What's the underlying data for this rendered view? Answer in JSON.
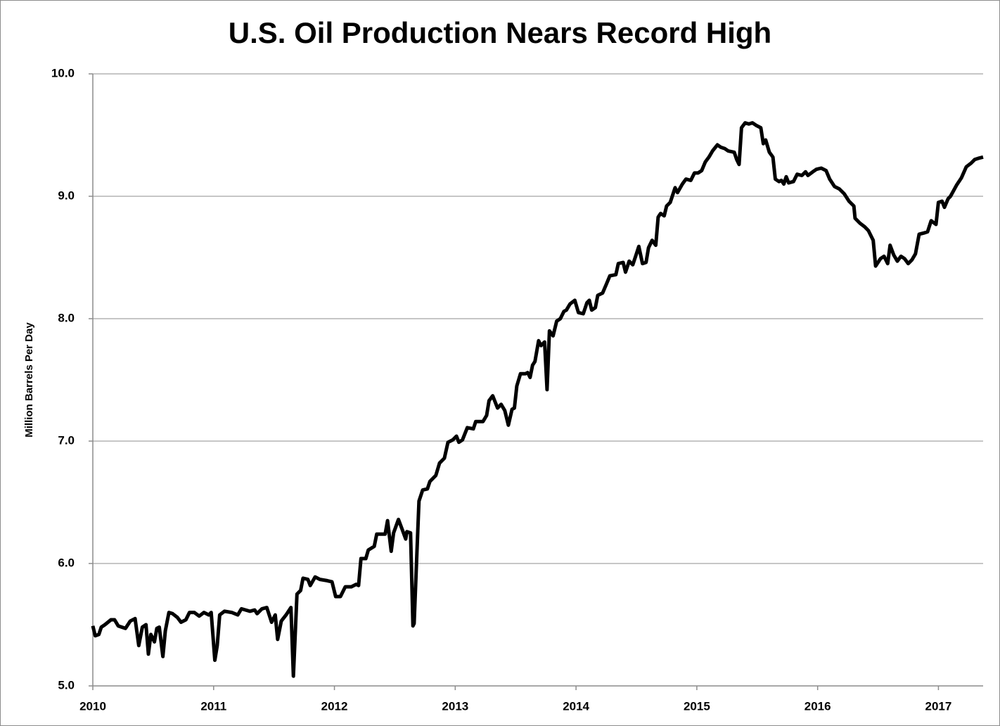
{
  "chart_data": {
    "type": "line",
    "title": "U.S. Oil Production Nears Record High",
    "y_label": "Million Barrels Per Day",
    "color": "#000000",
    "grid": true,
    "xlim": [
      2010,
      2017.37
    ],
    "xticks": [
      2010,
      2011,
      2012,
      2013,
      2014,
      2015,
      2016,
      2017
    ],
    "ylim": [
      5,
      10
    ],
    "yticks": [
      {
        "value": 5,
        "label": "5.0"
      },
      {
        "value": 6,
        "label": "6.0"
      },
      {
        "value": 7,
        "label": "7.0"
      },
      {
        "value": 8,
        "label": "8.0"
      },
      {
        "value": 9,
        "label": "9.0"
      },
      {
        "value": 10,
        "label": "10.0"
      }
    ],
    "x": [
      2010,
      2010.02,
      2010.05,
      2010.07,
      2010.1,
      2010.15,
      2010.18,
      2010.21,
      2010.27,
      2010.31,
      2010.35,
      2010.38,
      2010.41,
      2010.44,
      2010.46,
      2010.48,
      2010.51,
      2010.53,
      2010.55,
      2010.58,
      2010.6,
      2010.63,
      2010.66,
      2010.7,
      2010.73,
      2010.77,
      2010.8,
      2010.84,
      2010.88,
      2010.92,
      2010.96,
      2010.98,
      2011.01,
      2011.03,
      2011.05,
      2011.09,
      2011.15,
      2011.2,
      2011.23,
      2011.3,
      2011.34,
      2011.36,
      2011.4,
      2011.44,
      2011.48,
      2011.51,
      2011.53,
      2011.56,
      2011.6,
      2011.64,
      2011.66,
      2011.69,
      2011.72,
      2011.74,
      2011.78,
      2011.8,
      2011.84,
      2011.88,
      2011.94,
      2011.98,
      2012.01,
      2012.05,
      2012.09,
      2012.14,
      2012.18,
      2012.2,
      2012.22,
      2012.26,
      2012.28,
      2012.33,
      2012.35,
      2012.39,
      2012.42,
      2012.44,
      2012.47,
      2012.49,
      2012.53,
      2012.56,
      2012.59,
      2012.6,
      2012.63,
      2012.65,
      2012.66,
      2012.69,
      2012.7,
      2012.73,
      2012.77,
      2012.79,
      2012.84,
      2012.87,
      2012.91,
      2012.94,
      2012.98,
      2013.01,
      2013.03,
      2013.06,
      2013.1,
      2013.15,
      2013.17,
      2013.23,
      2013.26,
      2013.28,
      2013.31,
      2013.35,
      2013.38,
      2013.41,
      2013.44,
      2013.47,
      2013.49,
      2013.51,
      2013.54,
      2013.58,
      2013.6,
      2013.62,
      2013.64,
      2013.66,
      2013.69,
      2013.71,
      2013.74,
      2013.76,
      2013.78,
      2013.81,
      2013.84,
      2013.87,
      2013.9,
      2013.92,
      2013.95,
      2013.99,
      2014.02,
      2014.06,
      2014.09,
      2014.11,
      2014.13,
      2014.16,
      2014.18,
      2014.22,
      2014.25,
      2014.28,
      2014.33,
      2014.35,
      2014.39,
      2014.41,
      2014.44,
      2014.47,
      2014.5,
      2014.52,
      2014.55,
      2014.58,
      2014.6,
      2014.63,
      2014.66,
      2014.68,
      2014.7,
      2014.73,
      2014.75,
      2014.78,
      2014.82,
      2014.84,
      2014.88,
      2014.91,
      2014.95,
      2014.98,
      2015.01,
      2015.04,
      2015.07,
      2015.1,
      2015.13,
      2015.17,
      2015.2,
      2015.23,
      2015.26,
      2015.31,
      2015.33,
      2015.35,
      2015.37,
      2015.4,
      2015.43,
      2015.46,
      2015.49,
      2015.53,
      2015.55,
      2015.57,
      2015.6,
      2015.63,
      2015.65,
      2015.68,
      2015.7,
      2015.72,
      2015.74,
      2015.76,
      2015.8,
      2015.83,
      2015.87,
      2015.9,
      2015.92,
      2015.96,
      2015.99,
      2016.03,
      2016.07,
      2016.1,
      2016.14,
      2016.18,
      2016.22,
      2016.26,
      2016.3,
      2016.31,
      2016.35,
      2016.39,
      2016.42,
      2016.46,
      2016.48,
      2016.52,
      2016.55,
      2016.58,
      2016.6,
      2016.63,
      2016.66,
      2016.69,
      2016.72,
      2016.75,
      2016.78,
      2016.81,
      2016.84,
      2016.88,
      2016.91,
      2016.94,
      2016.98,
      2017,
      2017.03,
      2017.05,
      2017.08,
      2017.1,
      2017.15,
      2017.19,
      2017.23,
      2017.27,
      2017.3,
      2017.33,
      2017.37
    ],
    "values": [
      5.49,
      5.41,
      5.42,
      5.48,
      5.5,
      5.54,
      5.54,
      5.49,
      5.47,
      5.53,
      5.55,
      5.33,
      5.48,
      5.5,
      5.26,
      5.42,
      5.36,
      5.47,
      5.48,
      5.24,
      5.45,
      5.6,
      5.59,
      5.56,
      5.52,
      5.54,
      5.6,
      5.6,
      5.57,
      5.6,
      5.58,
      5.6,
      5.21,
      5.33,
      5.58,
      5.61,
      5.6,
      5.58,
      5.63,
      5.61,
      5.62,
      5.59,
      5.63,
      5.64,
      5.52,
      5.58,
      5.38,
      5.53,
      5.58,
      5.64,
      5.08,
      5.75,
      5.78,
      5.88,
      5.87,
      5.82,
      5.89,
      5.87,
      5.86,
      5.85,
      5.73,
      5.73,
      5.81,
      5.81,
      5.83,
      5.82,
      6.04,
      6.04,
      6.11,
      6.14,
      6.24,
      6.24,
      6.24,
      6.35,
      6.1,
      6.25,
      6.36,
      6.28,
      6.2,
      6.26,
      6.25,
      5.49,
      5.51,
      6.27,
      6.51,
      6.6,
      6.61,
      6.67,
      6.72,
      6.82,
      6.86,
      6.99,
      7.01,
      7.04,
      6.99,
      7.01,
      7.11,
      7.1,
      7.16,
      7.16,
      7.21,
      7.33,
      7.37,
      7.27,
      7.3,
      7.25,
      7.13,
      7.26,
      7.27,
      7.45,
      7.55,
      7.55,
      7.56,
      7.52,
      7.62,
      7.65,
      7.82,
      7.78,
      7.81,
      7.42,
      7.9,
      7.86,
      7.98,
      8.0,
      8.06,
      8.07,
      8.12,
      8.15,
      8.05,
      8.04,
      8.13,
      8.15,
      8.07,
      8.09,
      8.19,
      8.21,
      8.28,
      8.35,
      8.36,
      8.45,
      8.46,
      8.38,
      8.47,
      8.44,
      8.53,
      8.59,
      8.45,
      8.46,
      8.58,
      8.64,
      8.6,
      8.83,
      8.86,
      8.84,
      8.92,
      8.95,
      9.07,
      9.03,
      9.1,
      9.14,
      9.13,
      9.19,
      9.19,
      9.21,
      9.28,
      9.32,
      9.37,
      9.42,
      9.4,
      9.39,
      9.37,
      9.36,
      9.3,
      9.26,
      9.56,
      9.6,
      9.59,
      9.6,
      9.58,
      9.56,
      9.43,
      9.46,
      9.36,
      9.32,
      9.14,
      9.12,
      9.13,
      9.1,
      9.16,
      9.11,
      9.12,
      9.18,
      9.17,
      9.2,
      9.17,
      9.2,
      9.22,
      9.23,
      9.21,
      9.14,
      9.08,
      9.06,
      9.02,
      8.96,
      8.92,
      8.82,
      8.78,
      8.75,
      8.72,
      8.64,
      8.43,
      8.49,
      8.51,
      8.45,
      8.6,
      8.52,
      8.47,
      8.51,
      8.49,
      8.45,
      8.48,
      8.53,
      8.69,
      8.7,
      8.71,
      8.8,
      8.77,
      8.95,
      8.96,
      8.91,
      8.98,
      9.0,
      9.09,
      9.15,
      9.24,
      9.27,
      9.3,
      9.31,
      9.32
    ]
  }
}
